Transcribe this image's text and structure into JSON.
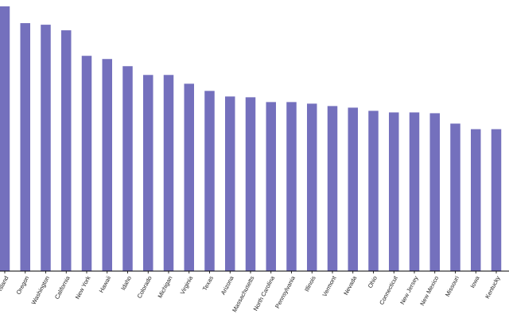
{
  "chart_data": {
    "type": "bar",
    "categories": [
      "Rhode Island",
      "Oregon",
      "Washington",
      "California",
      "New York",
      "Hawaii",
      "Idaho",
      "Colorado",
      "Michigan",
      "Virginia",
      "Texas",
      "Arizona",
      "Massachusetts",
      "North Carolina",
      "Pennsylvania",
      "Illinois",
      "Vermont",
      "Nevada",
      "Ohio",
      "Connecticut",
      "New Jersey",
      "New Mexico",
      "Missouri",
      "Iowa",
      "Kentucky"
    ],
    "values": [
      332,
      311,
      309,
      302,
      270,
      266,
      257,
      246,
      246,
      235,
      226,
      219,
      218,
      212,
      212,
      210,
      207,
      205,
      201,
      199,
      199,
      198,
      185,
      178,
      178
    ],
    "ylim": [
      0,
      340
    ],
    "title": "",
    "xlabel": "",
    "ylabel": "",
    "grid": false,
    "colors": {
      "bar": "#7470bd",
      "axis": "#000000",
      "text": "#222222"
    }
  }
}
